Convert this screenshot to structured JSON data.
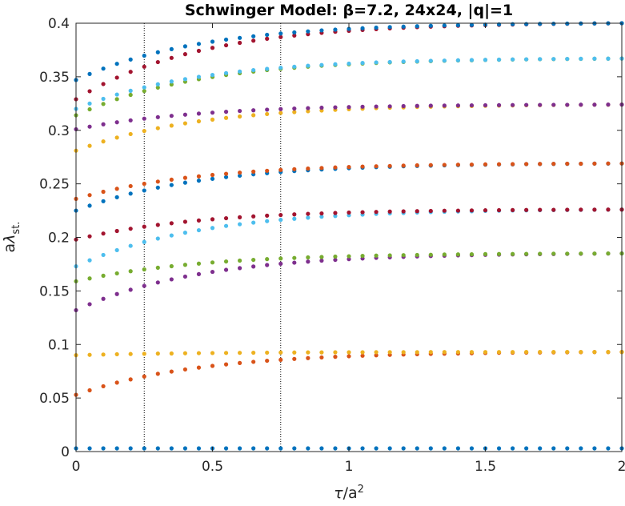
{
  "chart_data": {
    "type": "scatter",
    "title": "Schwinger Model: β=7.2, 24x24, |q|=1",
    "xlabel": "τ/a²",
    "ylabel": "aλst.",
    "xlim": [
      0,
      2
    ],
    "ylim": [
      0,
      0.4
    ],
    "x_ticks": [
      "0",
      "0.5",
      "1",
      "1.5",
      "2"
    ],
    "y_ticks": [
      "0",
      "0.05",
      "0.1",
      "0.15",
      "0.2",
      "0.25",
      "0.3",
      "0.35",
      "0.4"
    ],
    "reference_lines_x": [
      0.25,
      0.75
    ],
    "grid": false,
    "legend": "none",
    "x_sample_step": 0.05,
    "series": [
      {
        "color": "#0072BD",
        "start": 0.003,
        "end": 0.003,
        "values": []
      },
      {
        "color": "#D95319",
        "start": 0.053,
        "end": 0.093,
        "values": []
      },
      {
        "color": "#EDB120",
        "start": 0.09,
        "end": 0.093,
        "values": []
      },
      {
        "color": "#7E2F8E",
        "start": 0.132,
        "end": 0.185,
        "values": []
      },
      {
        "color": "#77AC30",
        "start": 0.159,
        "end": 0.185,
        "values": []
      },
      {
        "color": "#4DBEEE",
        "start": 0.173,
        "end": 0.226,
        "values": []
      },
      {
        "color": "#A2142F",
        "start": 0.198,
        "end": 0.226,
        "values": []
      },
      {
        "color": "#0072BD",
        "start": 0.225,
        "end": 0.269,
        "values": []
      },
      {
        "color": "#D95319",
        "start": 0.236,
        "end": 0.269,
        "values": []
      },
      {
        "color": "#EDB120",
        "start": 0.281,
        "end": 0.324,
        "values": []
      },
      {
        "color": "#7E2F8E",
        "start": 0.301,
        "end": 0.324,
        "values": []
      },
      {
        "color": "#77AC30",
        "start": 0.314,
        "end": 0.367,
        "values": []
      },
      {
        "color": "#4DBEEE",
        "start": 0.32,
        "end": 0.367,
        "values": []
      },
      {
        "color": "#A2142F",
        "start": 0.329,
        "end": 0.4,
        "values": []
      },
      {
        "color": "#0072BD",
        "start": 0.347,
        "end": 0.4,
        "values": []
      }
    ]
  }
}
